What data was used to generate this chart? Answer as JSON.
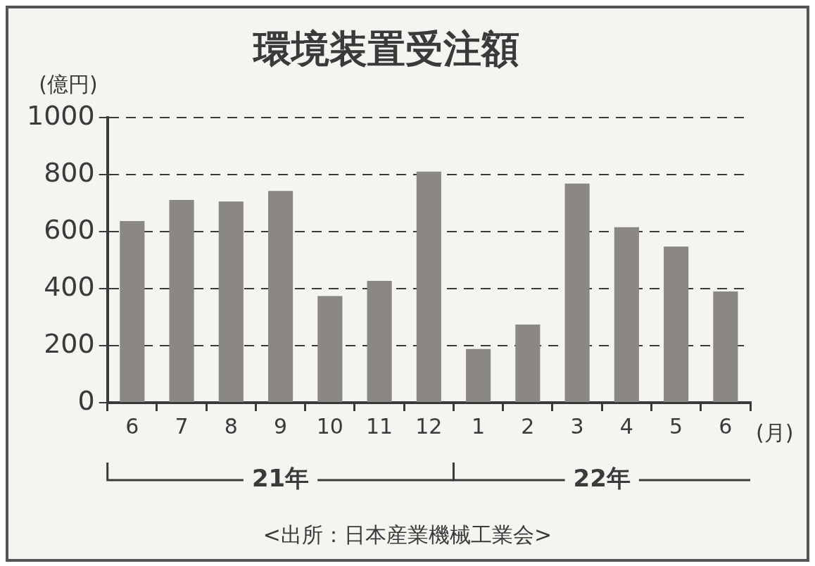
{
  "chart_data": {
    "type": "bar",
    "title": "環境装置受注額",
    "ylabel": "(億円)",
    "xlabel": "(月)",
    "categories": [
      "6",
      "7",
      "8",
      "9",
      "10",
      "11",
      "12",
      "1",
      "2",
      "3",
      "4",
      "5",
      "6"
    ],
    "values": [
      637,
      711,
      705,
      742,
      374,
      427,
      810,
      188,
      274,
      768,
      615,
      547,
      390
    ],
    "color": "#8a8784",
    "ylim": [
      0,
      1000
    ],
    "yticks": [
      0,
      200,
      400,
      600,
      800,
      1000
    ],
    "grid": "y",
    "legend": false,
    "annotations": [
      "21年",
      "22年",
      "<出所：日本産業機械工業会>"
    ]
  }
}
